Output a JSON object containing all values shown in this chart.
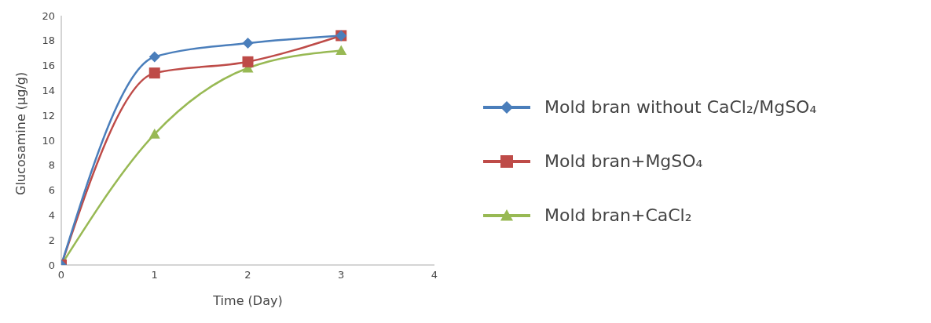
{
  "chart_data": {
    "type": "line",
    "xlabel": "Time (Day)",
    "ylabel": "Glucosamine (µg/g)",
    "x": [
      0,
      1,
      2,
      3
    ],
    "xlim": [
      0,
      4
    ],
    "xticks": [
      0,
      1,
      2,
      3,
      4
    ],
    "ylim": [
      0,
      20
    ],
    "yticks": [
      0,
      2,
      4,
      6,
      8,
      10,
      12,
      14,
      16,
      18,
      20
    ],
    "grid": false,
    "legend": "right",
    "series": [
      {
        "name": "Mold bran without CaCl₂/MgSO₄",
        "color": "#4a7ebb",
        "marker": "diamond",
        "values": [
          0,
          16.7,
          17.8,
          18.4
        ]
      },
      {
        "name": "Mold bran+MgSO₄",
        "color": "#be4b48",
        "marker": "square",
        "values": [
          0,
          15.4,
          16.3,
          18.4
        ]
      },
      {
        "name": "Mold bran+CaCl₂",
        "color": "#98b954",
        "marker": "triangle",
        "values": [
          0,
          10.5,
          15.8,
          17.2
        ]
      }
    ]
  }
}
